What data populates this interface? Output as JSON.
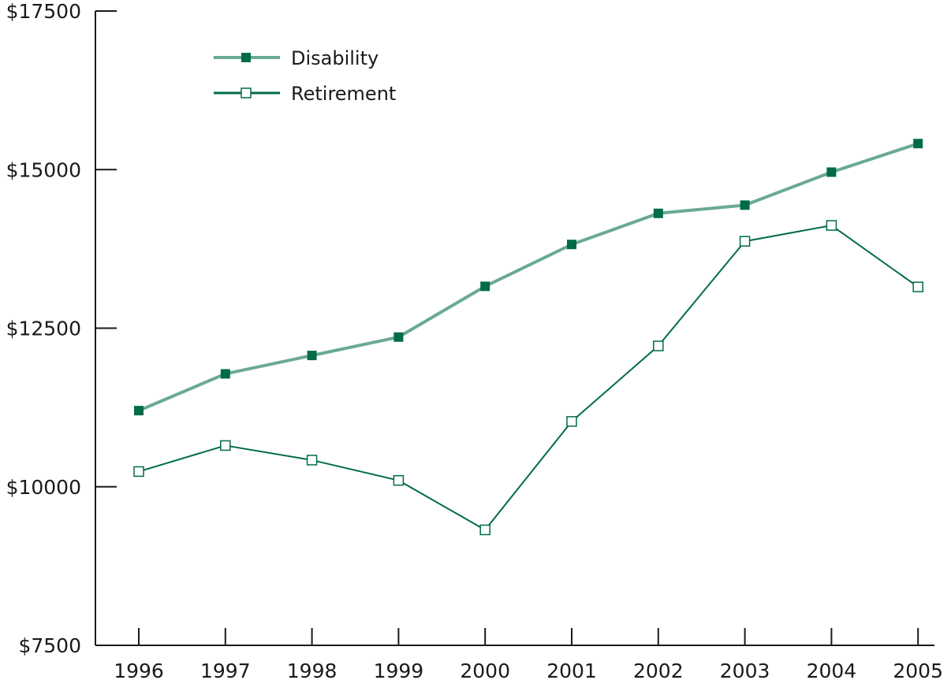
{
  "chart_data": {
    "type": "line",
    "x": [
      "1996",
      "1997",
      "1998",
      "1999",
      "2000",
      "2001",
      "2002",
      "2003",
      "2004",
      "2005"
    ],
    "ylim": [
      7500,
      17500
    ],
    "yticks": [
      7500,
      10000,
      12500,
      15000,
      17500
    ],
    "ytick_labels": [
      "$7500",
      "$10000",
      "$12500",
      "$15000",
      "$17500"
    ],
    "grid": false,
    "legend_position": "top-left",
    "series": [
      {
        "name": "Disability",
        "values": [
          11200,
          11780,
          12070,
          12360,
          13160,
          13820,
          14310,
          14440,
          14960,
          15410
        ],
        "line_color": "#6aaa92",
        "marker": "filled-square",
        "marker_color": "#006b4a"
      },
      {
        "name": "Retirement",
        "values": [
          10240,
          10650,
          10420,
          10100,
          9320,
          11030,
          12220,
          13870,
          14120,
          13150
        ],
        "line_color": "#006b4a",
        "marker": "open-square",
        "marker_color": "#006b4a"
      }
    ]
  }
}
